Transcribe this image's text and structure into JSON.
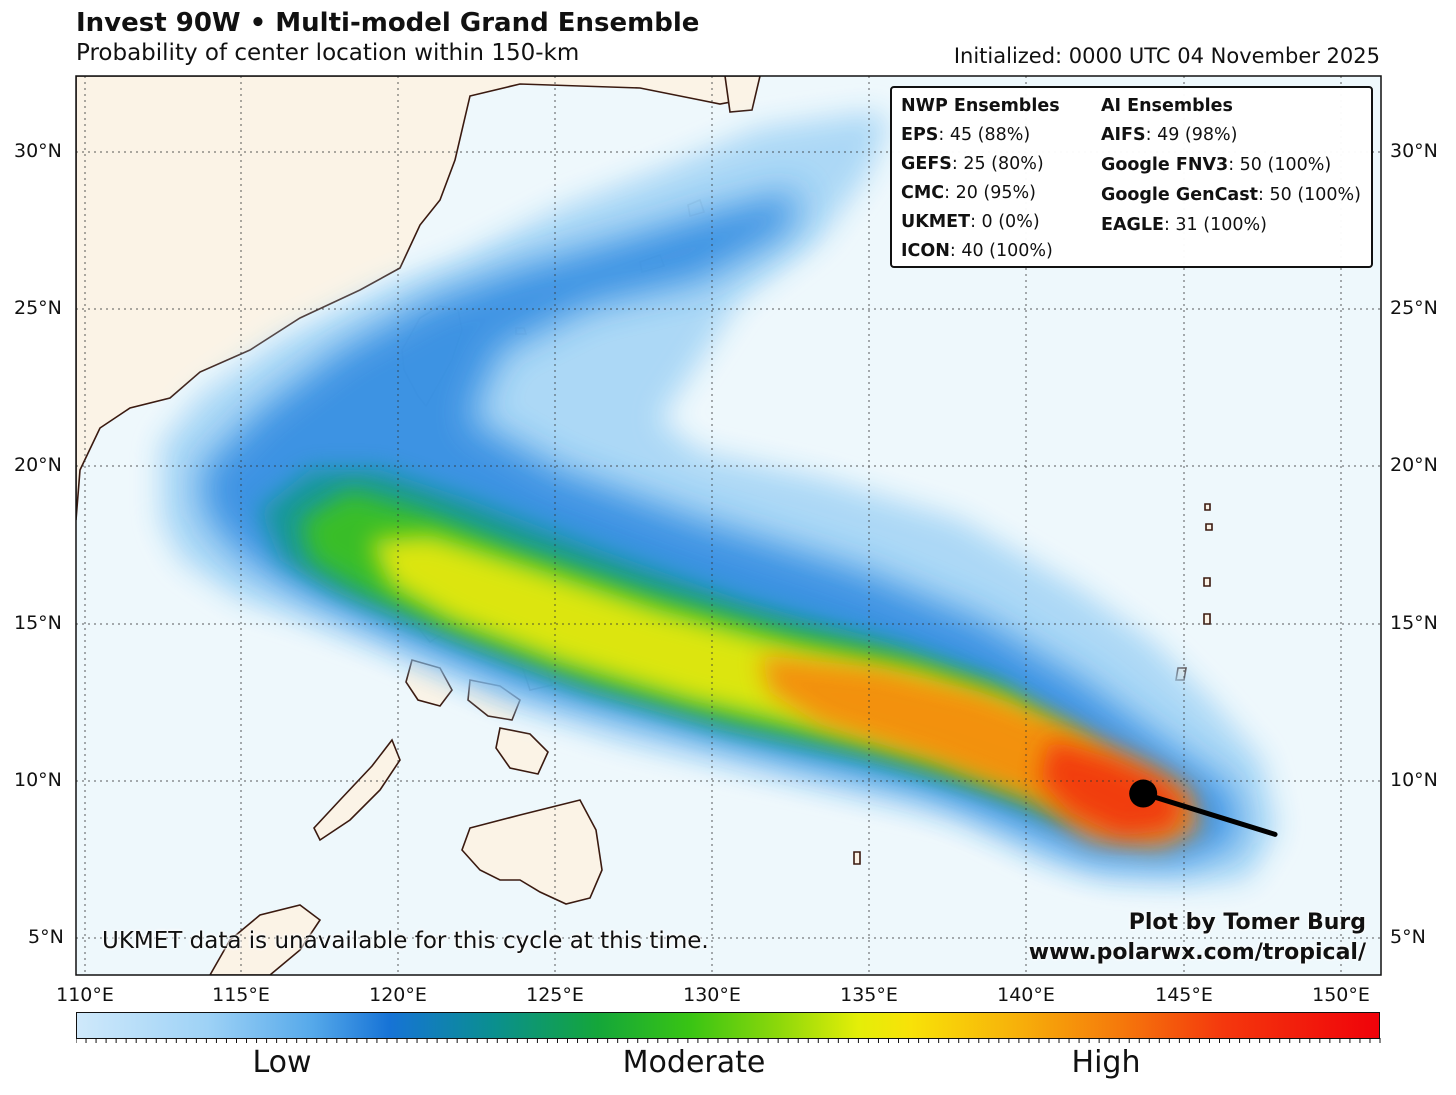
{
  "title": "Invest 90W • Multi-model Grand Ensemble",
  "subtitle": "Probability of center location within 150-km",
  "initialized": "Initialized: 0000 UTC 04 November 2025",
  "lat_labels": [
    "30°N",
    "25°N",
    "20°N",
    "15°N",
    "10°N",
    "5°N"
  ],
  "lon_labels": [
    "110°E",
    "115°E",
    "120°E",
    "125°E",
    "130°E",
    "135°E",
    "140°E",
    "145°E",
    "150°E"
  ],
  "legend": {
    "nwp_header": "NWP Ensembles",
    "ai_header": "AI Ensembles",
    "nwp": [
      {
        "model": "EPS",
        "value": ": 45 (88%)"
      },
      {
        "model": "GEFS",
        "value": ": 25 (80%)"
      },
      {
        "model": "CMC",
        "value": ": 20 (95%)"
      },
      {
        "model": "UKMET",
        "value": ": 0 (0%)"
      },
      {
        "model": "ICON",
        "value": ": 40 (100%)"
      }
    ],
    "ai": [
      {
        "model": "AIFS",
        "value": ": 49 (98%)"
      },
      {
        "model": "Google FNV3",
        "value": ": 50 (100%)"
      },
      {
        "model": "Google GenCast",
        "value": ": 50 (100%)"
      },
      {
        "model": "EAGLE",
        "value": ": 31 (100%)"
      }
    ]
  },
  "note": "UKMET data is unavailable for this cycle at this time.",
  "credit": {
    "author": "Plot by Tomer Burg",
    "url": "www.polarwx.com/tropical/"
  },
  "colorbar": {
    "low": "Low",
    "moderate": "Moderate",
    "high": "High"
  },
  "colors": {
    "ocean": "#eef8fc",
    "land": "#fbf3e6",
    "coast": "#3a1a10",
    "probability_scale": [
      "#cfe9fb",
      "#56a9ea",
      "#1673d6",
      "#14a63a",
      "#8ed80a",
      "#f8e208",
      "#f57a0b",
      "#f0020a"
    ]
  },
  "map_data": {
    "lon_range": [
      110,
      151
    ],
    "lat_range": [
      4,
      32.5
    ],
    "grid_lons": [
      110,
      115,
      120,
      125,
      130,
      135,
      140,
      145,
      150
    ],
    "grid_lats": [
      5,
      10,
      15,
      20,
      25,
      30
    ],
    "current_center": {
      "lon": 143.7,
      "lat": 9.6
    },
    "recent_motion_track": [
      {
        "lon": 143.7,
        "lat": 9.6
      },
      {
        "lon": 147.9,
        "lat": 8.3
      }
    ]
  }
}
